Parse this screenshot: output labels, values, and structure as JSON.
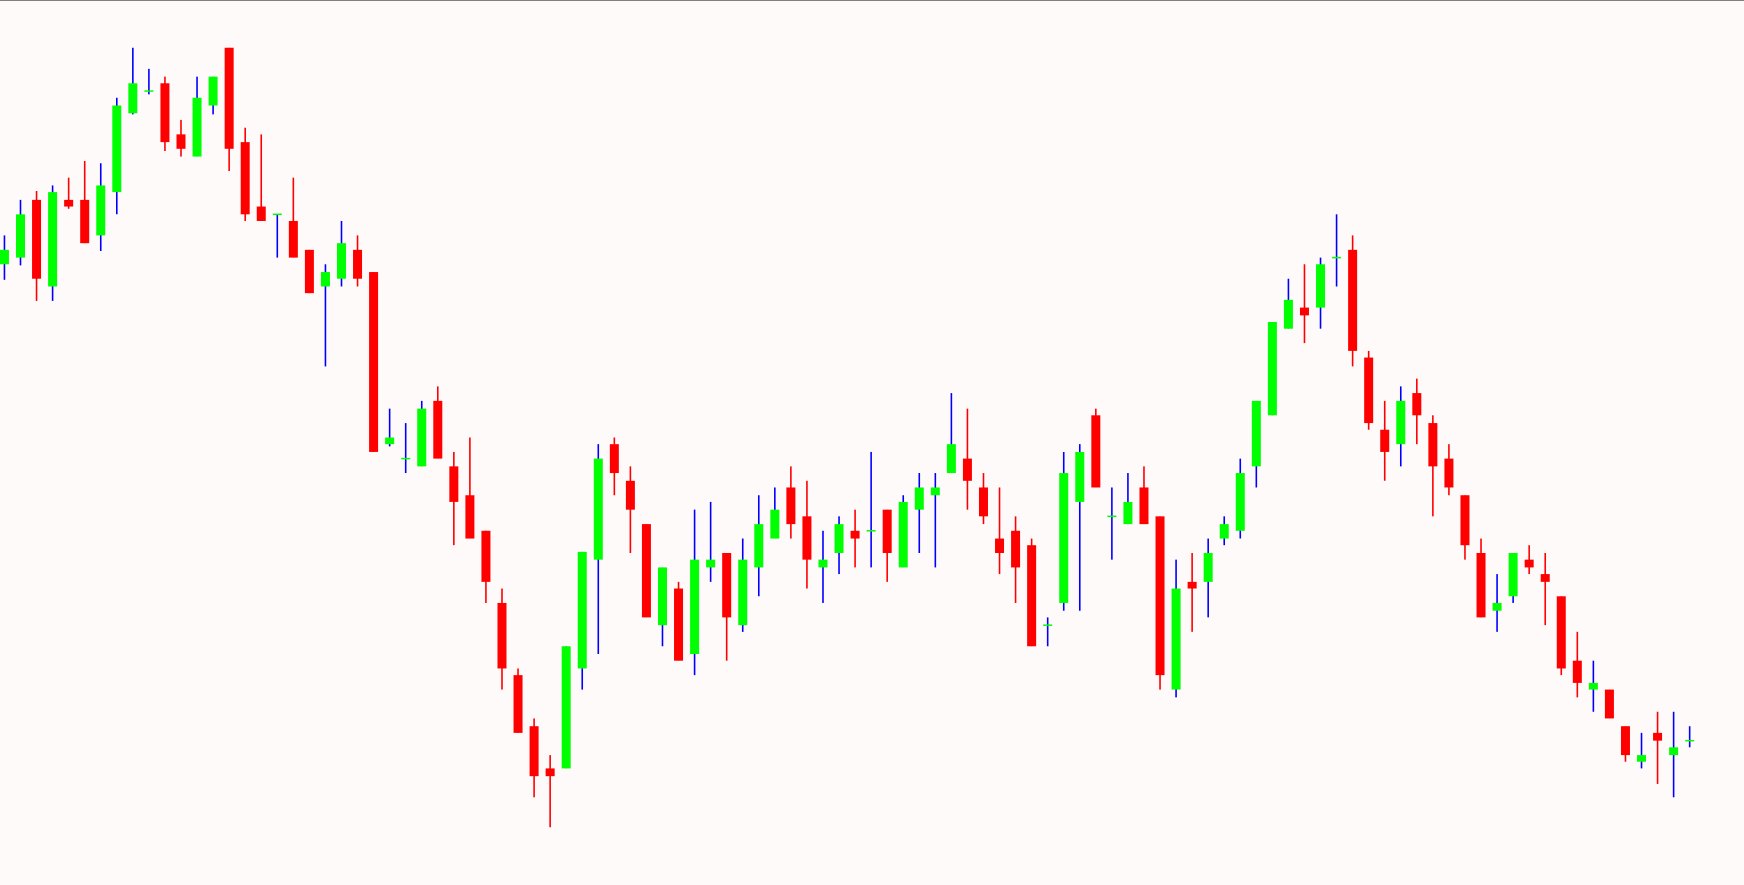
{
  "chart_data": {
    "type": "candlestick",
    "ylim": [
      3,
      800
    ],
    "up_color": "#00ff00",
    "down_color": "#ff0000",
    "up_wick_color": "#0000ff",
    "down_wick_color": "#ff0000",
    "open": [
      562,
      568,
      620,
      542,
      620,
      620,
      588,
      627,
      698,
      718,
      725,
      679,
      659,
      705,
      757,
      672,
      614,
      607,
      601,
      575,
      542,
      549,
      575,
      555,
      400,
      387,
      380,
      439,
      380,
      354,
      322,
      257,
      192,
      146,
      108,
      108,
      198,
      296,
      400,
      367,
      328,
      237,
      270,
      211,
      289,
      302,
      237,
      289,
      315,
      361,
      335,
      289,
      302,
      322,
      322,
      341,
      289,
      341,
      354,
      374,
      387,
      361,
      315,
      322,
      309,
      237,
      257,
      348,
      426,
      335,
      328,
      361,
      335,
      179,
      276,
      276,
      315,
      322,
      380,
      426,
      504,
      523,
      523,
      568,
      575,
      478,
      413,
      400,
      446,
      419,
      387,
      354,
      302,
      250,
      263,
      296,
      283,
      263,
      205,
      179,
      179,
      146,
      114,
      140,
      120,
      133
    ],
    "high": [
      588,
      620,
      628,
      633,
      640,
      655,
      653,
      712,
      757,
      738,
      731,
      692,
      731,
      731,
      757,
      685,
      679,
      607,
      640,
      575,
      562,
      601,
      588,
      555,
      432,
      419,
      439,
      452,
      393,
      406,
      322,
      270,
      198,
      153,
      120,
      218,
      303,
      400,
      406,
      380,
      328,
      289,
      276,
      341,
      348,
      302,
      315,
      354,
      361,
      380,
      367,
      322,
      335,
      341,
      393,
      341,
      354,
      374,
      374,
      446,
      432,
      374,
      361,
      335,
      315,
      244,
      393,
      400,
      432,
      361,
      374,
      380,
      335,
      296,
      302,
      315,
      335,
      387,
      439,
      510,
      549,
      562,
      568,
      607,
      588,
      484,
      439,
      452,
      459,
      426,
      400,
      354,
      315,
      283,
      302,
      309,
      302,
      263,
      231,
      205,
      179,
      146,
      140,
      159,
      159,
      146
    ],
    "low": [
      548,
      561,
      529,
      529,
      612,
      581,
      574,
      607,
      697,
      715,
      664,
      659,
      659,
      697,
      646,
      601,
      601,
      568,
      568,
      536,
      470,
      542,
      542,
      393,
      398,
      374,
      380,
      387,
      309,
      315,
      257,
      179,
      140,
      82,
      55,
      108,
      179,
      211,
      354,
      302,
      244,
      218,
      205,
      192,
      276,
      205,
      231,
      263,
      315,
      315,
      270,
      257,
      283,
      289,
      289,
      276,
      289,
      302,
      289,
      374,
      341,
      328,
      283,
      257,
      218,
      218,
      250,
      250,
      361,
      296,
      328,
      328,
      179,
      172,
      231,
      244,
      309,
      315,
      361,
      426,
      504,
      491,
      504,
      542,
      470,
      413,
      367,
      380,
      400,
      335,
      354,
      296,
      244,
      231,
      257,
      283,
      237,
      192,
      172,
      159,
      153,
      114,
      108,
      94,
      82,
      127
    ],
    "close": [
      575,
      607,
      549,
      627,
      614,
      581,
      633,
      705,
      725,
      718,
      672,
      666,
      712,
      731,
      666,
      607,
      601,
      607,
      568,
      536,
      555,
      581,
      549,
      393,
      406,
      387,
      432,
      387,
      348,
      315,
      276,
      198,
      140,
      101,
      101,
      218,
      303,
      387,
      374,
      341,
      244,
      289,
      205,
      296,
      296,
      244,
      296,
      328,
      341,
      328,
      296,
      296,
      328,
      315,
      322,
      302,
      348,
      361,
      361,
      400,
      367,
      335,
      302,
      289,
      218,
      237,
      374,
      393,
      361,
      335,
      348,
      328,
      192,
      270,
      270,
      302,
      328,
      374,
      439,
      510,
      530,
      516,
      562,
      568,
      484,
      419,
      393,
      439,
      426,
      380,
      361,
      309,
      244,
      257,
      302,
      289,
      276,
      198,
      185,
      185,
      153,
      120,
      120,
      133,
      127,
      133
    ]
  }
}
